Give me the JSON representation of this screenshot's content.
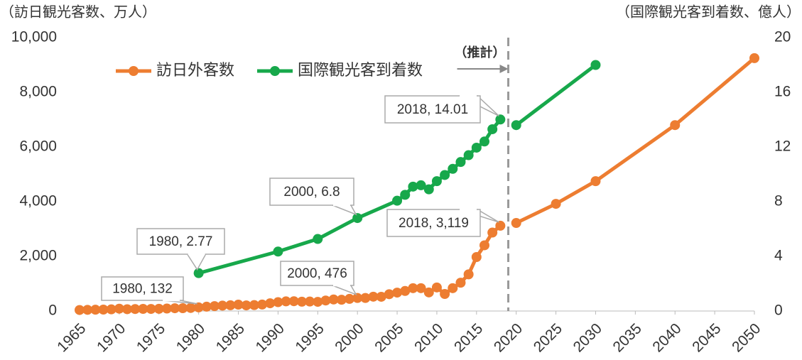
{
  "chart_data": {
    "type": "line",
    "y_axis_label": "（訪日観光客数、万人）",
    "y2_axis_label": "（国際観光客到着数、億人）",
    "xlim": [
      1965,
      2050
    ],
    "xticks": [
      1965,
      1970,
      1975,
      1980,
      1985,
      1990,
      1995,
      2000,
      2005,
      2010,
      2015,
      2020,
      2025,
      2030,
      2035,
      2040,
      2045,
      2050
    ],
    "ylim": [
      0,
      10000
    ],
    "yticks": [
      0,
      {
        "value": 2000,
        "label": "2,000"
      },
      {
        "value": 4000,
        "label": "4,000"
      },
      {
        "value": 6000,
        "label": "6,000"
      },
      {
        "value": 8000,
        "label": "8,000"
      },
      {
        "value": 10000,
        "label": "10,000"
      }
    ],
    "y2lim": [
      0,
      20
    ],
    "y2ticks": [
      0,
      4,
      8,
      12,
      16,
      20
    ],
    "grid": false,
    "legend": "top",
    "annotations": [
      {
        "text": "（推計）",
        "x": 2019
      }
    ],
    "series": [
      {
        "name": "訪日外客数",
        "color": "#ed7d31",
        "x": [
          1965,
          1966,
          1967,
          1968,
          1969,
          1970,
          1971,
          1972,
          1973,
          1974,
          1975,
          1976,
          1977,
          1978,
          1979,
          1980,
          1981,
          1982,
          1983,
          1984,
          1985,
          1986,
          1987,
          1988,
          1989,
          1990,
          1991,
          1992,
          1993,
          1994,
          1995,
          1996,
          1997,
          1998,
          1999,
          2000,
          2001,
          2002,
          2003,
          2004,
          2005,
          2006,
          2007,
          2008,
          2009,
          2010,
          2011,
          2012,
          2013,
          2014,
          2015,
          2016,
          2017,
          2018,
          2019,
          2020,
          2025,
          2030,
          2040,
          2050
        ],
        "values": [
          37,
          43,
          48,
          52,
          61,
          85,
          66,
          72,
          78,
          76,
          81,
          91,
          102,
          104,
          111,
          132,
          158,
          179,
          197,
          211,
          233,
          206,
          216,
          236,
          284,
          324,
          353,
          358,
          341,
          347,
          335,
          384,
          422,
          411,
          444,
          476,
          477,
          524,
          521,
          614,
          673,
          733,
          835,
          835,
          679,
          861,
          622,
          836,
          1036,
          1341,
          1974,
          2404,
          2869,
          3119,
          null,
          3220,
          3920,
          4750,
          6800,
          9250
        ],
        "value_labels": [
          null,
          null,
          null,
          null,
          null,
          null,
          null,
          null,
          null,
          null,
          null,
          null,
          null,
          null,
          null,
          "1980, 132",
          null,
          null,
          null,
          null,
          null,
          null,
          null,
          null,
          null,
          null,
          null,
          null,
          null,
          null,
          null,
          null,
          null,
          null,
          null,
          "2000, 476",
          null,
          null,
          null,
          null,
          null,
          null,
          null,
          null,
          null,
          null,
          null,
          null,
          null,
          null,
          null,
          null,
          null,
          "2018, 3,119",
          null,
          null,
          null,
          null,
          null,
          null
        ]
      },
      {
        "name": "国際観光客到着数",
        "color": "#17a84b",
        "axis": "y2",
        "x": [
          1980,
          1990,
          1995,
          2000,
          2005,
          2006,
          2007,
          2008,
          2009,
          2010,
          2011,
          2012,
          2013,
          2014,
          2015,
          2016,
          2017,
          2018,
          2019,
          2020,
          2030
        ],
        "values": [
          2.77,
          4.35,
          5.27,
          6.8,
          8.07,
          8.5,
          9.1,
          9.2,
          8.9,
          9.5,
          9.95,
          10.4,
          10.9,
          11.4,
          11.95,
          12.4,
          13.3,
          14.01,
          null,
          13.6,
          18.0
        ],
        "value_labels": [
          "1980, 2.77",
          null,
          null,
          "2000, 6.8",
          null,
          null,
          null,
          null,
          null,
          null,
          null,
          null,
          null,
          null,
          null,
          null,
          null,
          "2018, 14.01",
          null,
          null,
          null
        ]
      }
    ]
  }
}
